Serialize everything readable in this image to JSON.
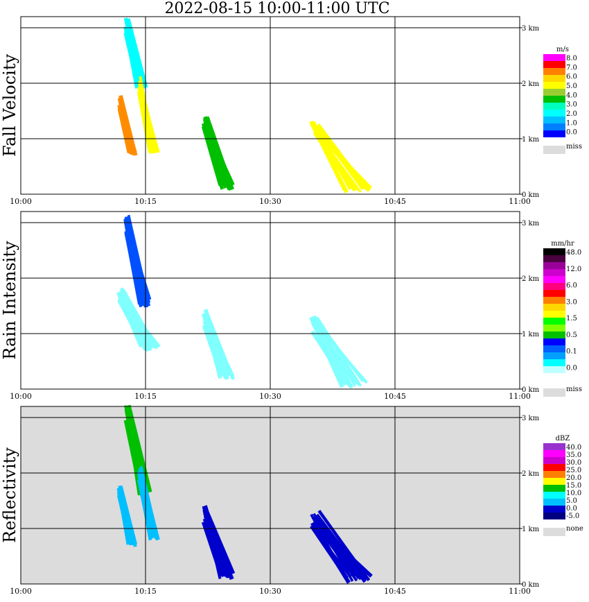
{
  "title": "2022-08-15   10:00-11:00 UTC",
  "colors": {
    "frame": "#000000",
    "missing": "#dcdcdc"
  },
  "chart_data": [
    {
      "type": "heatmap",
      "panel": "fall-velocity",
      "ylabel": "Fall Velocity",
      "x_ticks": [
        "10:00",
        "10:15",
        "10:30",
        "10:45",
        "11:00"
      ],
      "xlim": [
        "10:00",
        "11:00"
      ],
      "y_ticks": [
        "0 km",
        "1 km",
        "2 km",
        "3 km"
      ],
      "ylim": [
        0,
        3.2
      ],
      "grid": true,
      "background": "#ffffff",
      "colorbar": {
        "unit": "m/s",
        "labels": [
          "8.0",
          "7.0",
          "6.0",
          "5.0",
          "4.0",
          "3.0",
          "2.0",
          "1.0",
          "0.0"
        ],
        "colors": [
          "#ff00ff",
          "#ff0000",
          "#ff7f00",
          "#ffd700",
          "#ffff00",
          "#9acd32",
          "#00bf00",
          "#00ffbf",
          "#00ffff",
          "#00bfff",
          "#0080ff",
          "#0000ff"
        ],
        "miss_label": "miss"
      },
      "features": [
        {
          "t_start": 12.6,
          "t_end": 15.0,
          "h_top": 3.2,
          "h_bottom": 1.9,
          "color": "#00ffff"
        },
        {
          "t_start": 14.2,
          "t_end": 16.5,
          "h_top": 2.1,
          "h_bottom": 0.75,
          "color": "#ffff00"
        },
        {
          "t_start": 11.8,
          "t_end": 13.8,
          "h_top": 1.75,
          "h_bottom": 0.7,
          "color": "#ff8c00"
        },
        {
          "t_start": 22.0,
          "t_end": 25.5,
          "h_top": 1.4,
          "h_bottom": 0.1,
          "color": "#00bf00"
        },
        {
          "t_start": 35.0,
          "t_end": 42.0,
          "h_top": 1.35,
          "h_bottom": 0.05,
          "color": "#ffff00"
        }
      ]
    },
    {
      "type": "heatmap",
      "panel": "rain-intensity",
      "ylabel": "Rain Intensity",
      "x_ticks": [
        "10:00",
        "10:15",
        "10:30",
        "10:45",
        "11:00"
      ],
      "xlim": [
        "10:00",
        "11:00"
      ],
      "y_ticks": [
        "0 km",
        "1 km",
        "2 km",
        "3 km"
      ],
      "ylim": [
        0,
        3.2
      ],
      "grid": true,
      "background": "#ffffff",
      "colorbar": {
        "unit": "mm/hr",
        "labels": [
          "48.0",
          "12.0",
          "6.0",
          "3.0",
          "1.5",
          "0.5",
          "0.1",
          "0.0"
        ],
        "colors": [
          "#000000",
          "#4b0040",
          "#990099",
          "#cc00cc",
          "#ff00ff",
          "#ff0080",
          "#ff0000",
          "#ff8000",
          "#ffd700",
          "#ffff00",
          "#00ff00",
          "#80ff00",
          "#00bf00",
          "#0000ff",
          "#0060ff",
          "#00a0ff",
          "#00ffff",
          "#c0ffff",
          "#ffffff"
        ],
        "miss_label": "miss"
      },
      "features": [
        {
          "t_start": 12.6,
          "t_end": 15.5,
          "h_top": 3.2,
          "h_bottom": 1.5,
          "color": "#0050ff"
        },
        {
          "t_start": 11.8,
          "t_end": 16.5,
          "h_top": 1.8,
          "h_bottom": 0.7,
          "color": "#80ffff"
        },
        {
          "t_start": 22.0,
          "t_end": 25.5,
          "h_top": 1.4,
          "h_bottom": 0.2,
          "color": "#80ffff"
        },
        {
          "t_start": 35.0,
          "t_end": 41.5,
          "h_top": 1.3,
          "h_bottom": 0.05,
          "color": "#80ffff"
        }
      ]
    },
    {
      "type": "heatmap",
      "panel": "reflectivity",
      "ylabel": "Reflectivity",
      "x_ticks": [
        "10:00",
        "10:15",
        "10:30",
        "10:45",
        "11:00"
      ],
      "xlim": [
        "10:00",
        "11:00"
      ],
      "y_ticks": [
        "0 km",
        "1 km",
        "2 km",
        "3 km"
      ],
      "ylim": [
        0,
        3.2
      ],
      "grid": true,
      "background": "#dcdcdc",
      "colorbar": {
        "unit": "dBZ",
        "labels": [
          "40.0",
          "35.0",
          "30.0",
          "25.0",
          "20.0",
          "15.0",
          "10.0",
          "5.0",
          "0.0",
          "-5.0"
        ],
        "colors": [
          "#9932cc",
          "#ff00ff",
          "#cc00cc",
          "#ff0000",
          "#ff8000",
          "#ffff00",
          "#00bf00",
          "#00ffff",
          "#00bfff",
          "#0000cc",
          "#000080"
        ],
        "miss_label": "none"
      },
      "features": [
        {
          "t_start": 12.6,
          "t_end": 15.5,
          "h_top": 3.2,
          "h_bottom": 1.6,
          "color": "#00bf00"
        },
        {
          "t_start": 14.2,
          "t_end": 16.5,
          "h_top": 2.1,
          "h_bottom": 0.8,
          "color": "#00bfff"
        },
        {
          "t_start": 11.8,
          "t_end": 13.8,
          "h_top": 1.75,
          "h_bottom": 0.7,
          "color": "#00bfff"
        },
        {
          "t_start": 22.0,
          "t_end": 25.5,
          "h_top": 1.4,
          "h_bottom": 0.1,
          "color": "#0000cc"
        },
        {
          "t_start": 35.0,
          "t_end": 42.0,
          "h_top": 1.3,
          "h_bottom": 0.05,
          "color": "#0000cc"
        }
      ]
    }
  ]
}
